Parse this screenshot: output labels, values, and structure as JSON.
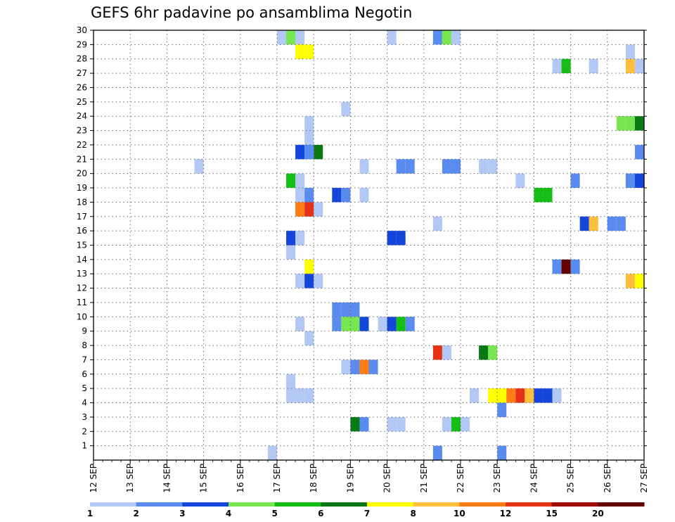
{
  "chart_data": {
    "type": "heatmap",
    "title": "GEFS 6hr padavine po ansamblima Negotin",
    "xlabel": "",
    "ylabel": "",
    "x_tick_labels": [
      "12 SEP",
      "13 SEP",
      "14 SEP",
      "15 SEP",
      "16 SEP",
      "17 SEP",
      "18 SEP",
      "19 SEP",
      "20 SEP",
      "21 SEP",
      "22 SEP",
      "23 SEP",
      "24 SEP",
      "25 SEP",
      "26 SEP",
      "27 SEP"
    ],
    "xlim": [
      0,
      60
    ],
    "x_step": "6 hours",
    "y_tick_labels": [
      "1",
      "2",
      "3",
      "4",
      "5",
      "6",
      "7",
      "8",
      "9",
      "10",
      "11",
      "12",
      "13",
      "14",
      "15",
      "16",
      "17",
      "18",
      "19",
      "20",
      "21",
      "22",
      "23",
      "24",
      "25",
      "26",
      "27",
      "28",
      "29",
      "30"
    ],
    "ylim": [
      0,
      30
    ],
    "grid": true,
    "legend": "bottom",
    "colorbar": {
      "labels": [
        "1",
        "2",
        "3",
        "4",
        "5",
        "6",
        "7",
        "8",
        "10",
        "12",
        "15",
        "20"
      ],
      "colors": [
        "#b4c8f5",
        "#5a8cf0",
        "#1446dc",
        "#78e650",
        "#14be14",
        "#0a7814",
        "#ffff00",
        "#ffbe3c",
        "#ff7d14",
        "#e63214",
        "#a00a0a",
        "#640000"
      ]
    },
    "cells": [
      [
        21,
        30,
        1
      ],
      [
        22,
        30,
        4
      ],
      [
        23,
        30,
        1
      ],
      [
        33,
        30,
        1
      ],
      [
        38,
        30,
        2
      ],
      [
        39,
        30,
        4
      ],
      [
        40,
        30,
        1
      ],
      [
        23,
        29,
        7
      ],
      [
        24,
        29,
        7
      ],
      [
        59,
        29,
        1
      ],
      [
        51,
        28,
        1
      ],
      [
        52,
        28,
        5
      ],
      [
        55,
        28,
        1
      ],
      [
        59,
        28,
        8
      ],
      [
        60,
        28,
        1
      ],
      [
        24,
        24,
        1
      ],
      [
        58,
        24,
        4
      ],
      [
        59,
        24,
        4
      ],
      [
        60,
        24,
        6
      ],
      [
        28,
        25,
        1
      ],
      [
        24,
        23,
        1
      ],
      [
        23,
        22,
        3
      ],
      [
        24,
        22,
        2
      ],
      [
        25,
        22,
        6
      ],
      [
        60,
        22,
        2
      ],
      [
        12,
        21,
        1
      ],
      [
        30,
        21,
        1
      ],
      [
        34,
        21,
        2
      ],
      [
        35,
        21,
        2
      ],
      [
        39,
        21,
        2
      ],
      [
        40,
        21,
        2
      ],
      [
        43,
        21,
        1
      ],
      [
        44,
        21,
        1
      ],
      [
        22,
        20,
        5
      ],
      [
        23,
        20,
        1
      ],
      [
        47,
        20,
        1
      ],
      [
        53,
        20,
        2
      ],
      [
        59,
        20,
        2
      ],
      [
        60,
        20,
        3
      ],
      [
        23,
        19,
        1
      ],
      [
        24,
        19,
        2
      ],
      [
        27,
        19,
        3
      ],
      [
        28,
        19,
        2
      ],
      [
        30,
        19,
        1
      ],
      [
        49,
        19,
        5
      ],
      [
        50,
        19,
        5
      ],
      [
        23,
        18,
        10
      ],
      [
        24,
        18,
        12
      ],
      [
        25,
        18,
        1
      ],
      [
        38,
        17,
        1
      ],
      [
        54,
        17,
        3
      ],
      [
        55,
        17,
        8
      ],
      [
        57,
        17,
        2
      ],
      [
        58,
        17,
        2
      ],
      [
        22,
        16,
        3
      ],
      [
        23,
        16,
        1
      ],
      [
        33,
        16,
        3
      ],
      [
        34,
        16,
        3
      ],
      [
        22,
        15,
        1
      ],
      [
        24,
        14,
        7
      ],
      [
        51,
        14,
        2
      ],
      [
        52,
        14,
        20
      ],
      [
        53,
        14,
        2
      ],
      [
        23,
        13,
        1
      ],
      [
        24,
        13,
        3
      ],
      [
        25,
        13,
        1
      ],
      [
        59,
        13,
        8
      ],
      [
        60,
        13,
        7
      ],
      [
        27,
        11,
        2
      ],
      [
        28,
        11,
        2
      ],
      [
        29,
        11,
        2
      ],
      [
        27,
        10,
        2
      ],
      [
        28,
        10,
        4
      ],
      [
        29,
        10,
        4
      ],
      [
        30,
        10,
        3
      ],
      [
        32,
        10,
        1
      ],
      [
        33,
        10,
        3
      ],
      [
        34,
        10,
        5
      ],
      [
        35,
        10,
        2
      ],
      [
        23,
        10,
        1
      ],
      [
        24,
        9,
        1
      ],
      [
        38,
        8,
        12
      ],
      [
        39,
        8,
        1
      ],
      [
        43,
        8,
        6
      ],
      [
        44,
        8,
        4
      ],
      [
        28,
        7,
        1
      ],
      [
        29,
        7,
        2
      ],
      [
        30,
        7,
        10
      ],
      [
        31,
        7,
        2
      ],
      [
        22,
        6,
        1
      ],
      [
        22,
        5,
        1
      ],
      [
        23,
        5,
        1
      ],
      [
        24,
        5,
        1
      ],
      [
        42,
        5,
        1
      ],
      [
        44,
        5,
        7
      ],
      [
        45,
        5,
        7
      ],
      [
        46,
        5,
        10
      ],
      [
        47,
        5,
        12
      ],
      [
        48,
        5,
        8
      ],
      [
        49,
        5,
        3
      ],
      [
        50,
        5,
        3
      ],
      [
        51,
        5,
        1
      ],
      [
        45,
        4,
        2
      ],
      [
        29,
        3,
        6
      ],
      [
        30,
        3,
        2
      ],
      [
        33,
        3,
        1
      ],
      [
        34,
        3,
        1
      ],
      [
        39,
        3,
        1
      ],
      [
        40,
        3,
        5
      ],
      [
        41,
        3,
        1
      ],
      [
        20,
        1,
        1
      ],
      [
        38,
        1,
        2
      ],
      [
        45,
        1,
        2
      ]
    ]
  }
}
